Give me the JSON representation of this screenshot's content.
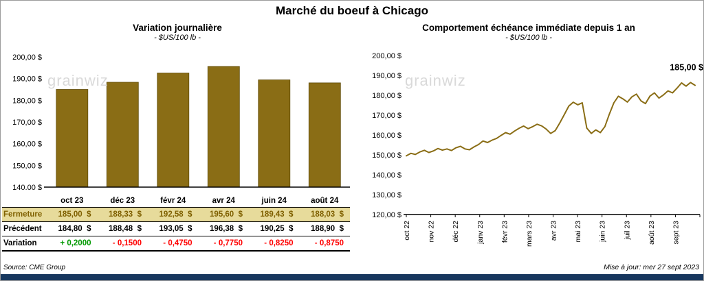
{
  "page_title": "Marché du boeuf à Chicago",
  "watermark": "grainwiz",
  "footer": {
    "source": "Source: CME Group",
    "updated": "Mise à jour: mer 27 sept 2023"
  },
  "colors": {
    "bar": "#8a6d15",
    "bar_edge": "#5f4c0b",
    "line": "#8a6d15",
    "positive": "#009900",
    "negative": "#ff0000",
    "fermeture_bg": "#e7db9b",
    "fermeture_text": "#7f6000",
    "footer_bar": "#17375e",
    "watermark_color": "#d9d9d9"
  },
  "chart_data": [
    {
      "type": "bar",
      "title": "Variation journalière",
      "subtitle": "- $US/100 lb -",
      "categories": [
        "oct 23",
        "déc 23",
        "févr 24",
        "avr 24",
        "juin 24",
        "août 24"
      ],
      "values": [
        185.0,
        188.33,
        192.58,
        195.6,
        189.43,
        188.03
      ],
      "ylim": [
        140,
        200
      ],
      "ytick_step": 10,
      "ytick_labels": [
        "140,00 $",
        "150,00 $",
        "160,00 $",
        "170,00 $",
        "180,00 $",
        "190,00 $",
        "200,00 $"
      ],
      "grid": false,
      "legend": false
    },
    {
      "type": "line",
      "title": "Comportement échéance immédiate depuis 1 an",
      "subtitle": "- $US/100 lb -",
      "x_labels": [
        "oct 22",
        "nov 22",
        "déc 22",
        "janv 23",
        "févr 23",
        "mars 23",
        "avr 23",
        "mai 23",
        "juin 23",
        "juil 23",
        "août 23",
        "sept 23"
      ],
      "values": [
        149.5,
        150.8,
        150.2,
        151.5,
        152.3,
        151.2,
        152.0,
        153.2,
        152.4,
        153.0,
        152.2,
        153.6,
        154.3,
        153.0,
        152.6,
        154.0,
        155.2,
        157.0,
        156.2,
        157.4,
        158.3,
        159.8,
        161.2,
        160.4,
        162.0,
        163.4,
        164.5,
        163.2,
        164.2,
        165.4,
        164.6,
        163.0,
        160.8,
        162.2,
        166.0,
        170.2,
        174.5,
        176.5,
        175.2,
        176.2,
        163.5,
        160.8,
        162.6,
        161.2,
        164.2,
        170.5,
        176.2,
        179.5,
        178.2,
        176.6,
        179.2,
        180.6,
        177.2,
        175.8,
        179.6,
        181.2,
        178.6,
        180.2,
        182.2,
        181.2,
        183.6,
        186.2,
        184.6,
        186.4,
        185.0
      ],
      "ylim": [
        120,
        200
      ],
      "ytick_step": 10,
      "ytick_labels": [
        "120,00 $",
        "130,00 $",
        "140,00 $",
        "150,00 $",
        "160,00 $",
        "170,00 $",
        "180,00 $",
        "190,00 $",
        "200,00 $"
      ],
      "annotation": "185,00 $",
      "grid": false,
      "legend": false
    }
  ],
  "table": {
    "rows": [
      {
        "id": "fermeture",
        "label": "Fermeture",
        "values": [
          "185,00  $",
          "188,33  $",
          "192,58  $",
          "195,60  $",
          "189,43  $",
          "188,03  $"
        ]
      },
      {
        "id": "precedent",
        "label": "Précédent",
        "values": [
          "184,80  $",
          "188,48  $",
          "193,05  $",
          "196,38  $",
          "190,25  $",
          "188,90  $"
        ]
      },
      {
        "id": "variation",
        "label": "Variation",
        "values": [
          "+ 0,2000",
          "- 0,1500",
          "- 0,4750",
          "- 0,7750",
          "- 0,8250",
          "- 0,8750"
        ]
      }
    ]
  }
}
